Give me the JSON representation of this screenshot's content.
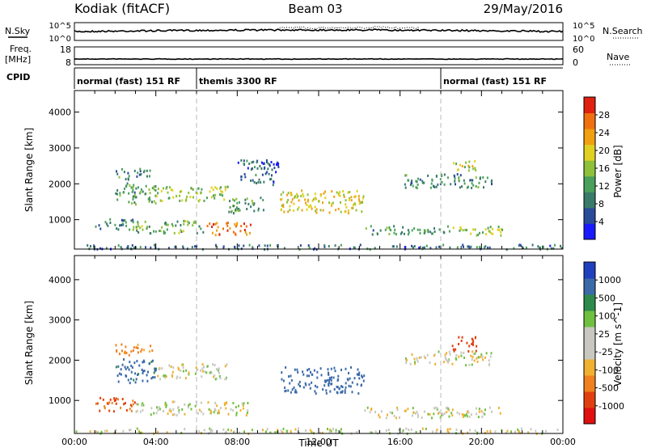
{
  "header": {
    "station": "Kodiak (fitACF)",
    "beam": "Beam 03",
    "date": "29/May/2016"
  },
  "noise_panel": {
    "left_label": "N.Sky",
    "right_label": "N.Search",
    "tick_top": "10^5",
    "tick_bottom": "10^0"
  },
  "freq_panel": {
    "left_label_1": "Freq.",
    "left_label_2": "[MHz]",
    "right_label": "Nave",
    "left_ticks": [
      "18",
      "8"
    ],
    "right_ticks": [
      "60",
      "0"
    ]
  },
  "cpid": {
    "label": "CPID",
    "segments": [
      {
        "start_hour": 0,
        "end_hour": 6,
        "label": "normal (fast) 151 RF"
      },
      {
        "start_hour": 6,
        "end_hour": 18,
        "label": "themis 3300 RF"
      },
      {
        "start_hour": 18,
        "end_hour": 24,
        "label": "normal (fast) 151 RF"
      }
    ]
  },
  "colors": {
    "power_scale": [
      "#1a1aff",
      "#2a4a9a",
      "#3a7a6a",
      "#4aa05a",
      "#8ec03a",
      "#e0d020",
      "#f0a010",
      "#f07010",
      "#e02010"
    ],
    "velocity_scale": [
      "#2040c0",
      "#3a6aa8",
      "#2e8a4a",
      "#70c040",
      "#c8c8c0",
      "#c8c8c0",
      "#f0b030",
      "#f08020",
      "#e04010",
      "#e01010"
    ]
  },
  "chart_data": [
    {
      "type": "heatmap",
      "name": "power-panel",
      "xlabel": "",
      "ylabel": "Slant Range [km]",
      "xlim": [
        0,
        24
      ],
      "ylim": [
        180,
        4600
      ],
      "yticks": [
        1000,
        2000,
        3000,
        4000
      ],
      "colorbar_label": "Power [dB]",
      "colorbar_ticks": [
        "4",
        "8",
        "12",
        "16",
        "20",
        "24",
        "28"
      ],
      "colorbar_range": [
        0,
        32
      ],
      "regions": [
        {
          "t0": 1.0,
          "t1": 3.0,
          "r0": 750,
          "r1": 1050,
          "value": 10
        },
        {
          "t0": 3.0,
          "t1": 6.5,
          "r0": 650,
          "r1": 1000,
          "value": 14
        },
        {
          "t0": 6.5,
          "t1": 8.7,
          "r0": 600,
          "r1": 950,
          "value": 26
        },
        {
          "t0": 2.0,
          "t1": 4.0,
          "r0": 1450,
          "r1": 2050,
          "value": 12
        },
        {
          "t0": 4.0,
          "t1": 7.5,
          "r0": 1550,
          "r1": 1950,
          "value": 16
        },
        {
          "t0": 7.5,
          "t1": 9.3,
          "r0": 1200,
          "r1": 1650,
          "value": 12
        },
        {
          "t0": 2.0,
          "t1": 3.7,
          "r0": 2150,
          "r1": 2450,
          "value": 10
        },
        {
          "t0": 8.0,
          "t1": 10.0,
          "r0": 2000,
          "r1": 2700,
          "value": 7
        },
        {
          "t0": 10.1,
          "t1": 14.2,
          "r0": 1200,
          "r1": 1850,
          "value": 20
        },
        {
          "t0": 14.2,
          "t1": 18.5,
          "r0": 620,
          "r1": 850,
          "value": 12
        },
        {
          "t0": 18.5,
          "t1": 21.0,
          "r0": 580,
          "r1": 850,
          "value": 16
        },
        {
          "t0": 16.2,
          "t1": 20.5,
          "r0": 1900,
          "r1": 2300,
          "value": 10
        },
        {
          "t0": 18.6,
          "t1": 19.7,
          "r0": 2350,
          "r1": 2700,
          "value": 18
        },
        {
          "t0": 0.0,
          "t1": 24.0,
          "r0": 200,
          "r1": 330,
          "value": 8
        }
      ]
    },
    {
      "type": "heatmap",
      "name": "velocity-panel",
      "xlabel": "Time UT",
      "ylabel": "Slant Range [km]",
      "xlim": [
        0,
        24
      ],
      "ylim": [
        180,
        4600
      ],
      "yticks": [
        1000,
        2000,
        3000,
        4000
      ],
      "xtick_labels": [
        "00:00",
        "04:00",
        "08:00",
        "12:00",
        "16:00",
        "20:00",
        "00:00"
      ],
      "colorbar_label": "Velocity [m s^-1]",
      "colorbar_ticks": [
        "1000",
        "500",
        "100",
        "25",
        "-25",
        "-100",
        "-500",
        "-1000"
      ],
      "regions": [
        {
          "t0": 1.0,
          "t1": 3.0,
          "r0": 750,
          "r1": 1100,
          "value": -300
        },
        {
          "t0": 3.0,
          "t1": 8.6,
          "r0": 650,
          "r1": 1000,
          "value": 0
        },
        {
          "t0": 2.0,
          "t1": 4.0,
          "r0": 1450,
          "r1": 2050,
          "value": 150
        },
        {
          "t0": 4.0,
          "t1": 7.5,
          "r0": 1550,
          "r1": 1950,
          "value": 0
        },
        {
          "t0": 2.0,
          "t1": 3.8,
          "r0": 2150,
          "r1": 2450,
          "value": -150
        },
        {
          "t0": 10.1,
          "t1": 14.2,
          "r0": 1200,
          "r1": 1850,
          "value": 200
        },
        {
          "t0": 14.2,
          "t1": 21.0,
          "r0": 580,
          "r1": 850,
          "value": 0
        },
        {
          "t0": 18.5,
          "t1": 19.8,
          "r0": 2250,
          "r1": 2600,
          "value": -400
        },
        {
          "t0": 16.2,
          "t1": 20.5,
          "r0": 1900,
          "r1": 2250,
          "value": 0
        },
        {
          "t0": 0.0,
          "t1": 24.0,
          "r0": 200,
          "r1": 330,
          "value": 0
        }
      ]
    }
  ]
}
